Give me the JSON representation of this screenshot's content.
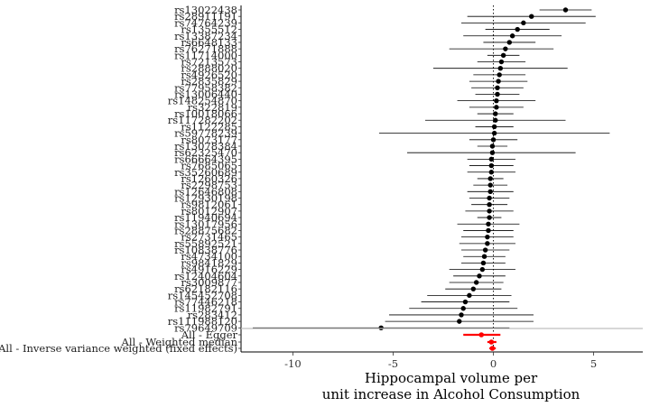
{
  "chart_data": {
    "type": "scatter",
    "subtype": "forest-plot",
    "title": "",
    "xlabel_line1": "Hippocampal volume per",
    "xlabel_line2": "unit increase in Alcohol Consumption",
    "ylabel": "",
    "xlim": [
      -12,
      7
    ],
    "xticks": [
      -10,
      -5,
      0,
      5
    ],
    "xtick_labels": [
      "-10",
      "-5",
      "0",
      "5"
    ],
    "reference_line": 0,
    "grid": false,
    "colors": {
      "snp": "#000000",
      "summary": "#ff0000",
      "separator": "#bfbfbf"
    },
    "snps": [
      {
        "label": "rs13022438",
        "estimate": 3.6,
        "lower": 2.3,
        "upper": 4.9
      },
      {
        "label": "rs28911191",
        "estimate": 1.9,
        "lower": -1.3,
        "upper": 5.1
      },
      {
        "label": "rs74764239",
        "estimate": 1.5,
        "lower": -1.6,
        "upper": 4.6
      },
      {
        "label": "rs1355512",
        "estimate": 1.2,
        "lower": -0.4,
        "upper": 2.8
      },
      {
        "label": "rs13387234",
        "estimate": 0.95,
        "lower": -1.5,
        "upper": 3.4
      },
      {
        "label": "rs6648133",
        "estimate": 0.8,
        "lower": -0.5,
        "upper": 2.1
      },
      {
        "label": "rs76271888",
        "estimate": 0.6,
        "lower": -2.2,
        "upper": 3.0
      },
      {
        "label": "rs11714000",
        "estimate": 0.5,
        "lower": -0.3,
        "upper": 1.3
      },
      {
        "label": "rs7213573",
        "estimate": 0.4,
        "lower": -0.8,
        "upper": 1.6
      },
      {
        "label": "rs2888020",
        "estimate": 0.35,
        "lower": -3.0,
        "upper": 3.7
      },
      {
        "label": "rs4926520",
        "estimate": 0.3,
        "lower": -1.0,
        "upper": 1.6
      },
      {
        "label": "rs2835829",
        "estimate": 0.25,
        "lower": -1.2,
        "upper": 1.7
      },
      {
        "label": "rs77958382",
        "estimate": 0.2,
        "lower": -1.1,
        "upper": 1.5
      },
      {
        "label": "rs13006440",
        "estimate": 0.2,
        "lower": -0.9,
        "upper": 1.3
      },
      {
        "label": "rs148254870",
        "estimate": 0.15,
        "lower": -1.8,
        "upper": 2.1
      },
      {
        "label": "rs322819",
        "estimate": 0.15,
        "lower": -1.2,
        "upper": 1.5
      },
      {
        "label": "rs10018066",
        "estimate": 0.1,
        "lower": -0.8,
        "upper": 1.0
      },
      {
        "label": "rs117282202",
        "estimate": 0.1,
        "lower": -3.4,
        "upper": 3.6
      },
      {
        "label": "rs1122285",
        "estimate": 0.05,
        "lower": -0.9,
        "upper": 1.0
      },
      {
        "label": "rs59778239",
        "estimate": 0.05,
        "lower": -5.7,
        "upper": 5.8
      },
      {
        "label": "rs8073177",
        "estimate": 0.0,
        "lower": -1.2,
        "upper": 1.2
      },
      {
        "label": "rs13078384",
        "estimate": -0.05,
        "lower": -0.8,
        "upper": 0.7
      },
      {
        "label": "rs62325470",
        "estimate": -0.05,
        "lower": -4.3,
        "upper": 4.1
      },
      {
        "label": "rs66664395",
        "estimate": -0.1,
        "lower": -1.3,
        "upper": 1.1
      },
      {
        "label": "rs7685065",
        "estimate": -0.1,
        "lower": -1.2,
        "upper": 1.0
      },
      {
        "label": "rs35260689",
        "estimate": -0.1,
        "lower": -1.3,
        "upper": 1.1
      },
      {
        "label": "rs1260326",
        "estimate": -0.15,
        "lower": -0.8,
        "upper": 0.5
      },
      {
        "label": "rs2298753",
        "estimate": -0.15,
        "lower": -1.0,
        "upper": 0.7
      },
      {
        "label": "rs12646808",
        "estimate": -0.15,
        "lower": -1.3,
        "upper": 1.0
      },
      {
        "label": "rs12930198",
        "estimate": -0.2,
        "lower": -1.2,
        "upper": 0.8
      },
      {
        "label": "rs9812061",
        "estimate": -0.2,
        "lower": -1.1,
        "upper": 0.7
      },
      {
        "label": "rs8012907",
        "estimate": -0.2,
        "lower": -1.4,
        "upper": 1.0
      },
      {
        "label": "rs11940694",
        "estimate": -0.2,
        "lower": -0.8,
        "upper": 0.4
      },
      {
        "label": "rs13017956",
        "estimate": -0.25,
        "lower": -1.8,
        "upper": 1.3
      },
      {
        "label": "rs28875682",
        "estimate": -0.25,
        "lower": -1.5,
        "upper": 1.0
      },
      {
        "label": "rs2731465",
        "estimate": -0.3,
        "lower": -1.6,
        "upper": 1.0
      },
      {
        "label": "rs55892521",
        "estimate": -0.3,
        "lower": -1.7,
        "upper": 1.1
      },
      {
        "label": "rs10838776",
        "estimate": -0.4,
        "lower": -1.6,
        "upper": 0.8
      },
      {
        "label": "rs4734100",
        "estimate": -0.45,
        "lower": -1.5,
        "upper": 0.6
      },
      {
        "label": "rs9841829",
        "estimate": -0.5,
        "lower": -1.6,
        "upper": 0.6
      },
      {
        "label": "rs4916229",
        "estimate": -0.55,
        "lower": -2.2,
        "upper": 1.1
      },
      {
        "label": "rs12404604",
        "estimate": -0.7,
        "lower": -2.0,
        "upper": 0.6
      },
      {
        "label": "rs3009877",
        "estimate": -0.85,
        "lower": -2.2,
        "upper": 0.5
      },
      {
        "label": "rs62182116",
        "estimate": -1.0,
        "lower": -2.4,
        "upper": 0.4
      },
      {
        "label": "rs145452708",
        "estimate": -1.2,
        "lower": -3.3,
        "upper": 0.9
      },
      {
        "label": "rs77446218",
        "estimate": -1.4,
        "lower": -3.6,
        "upper": 0.8
      },
      {
        "label": "rs11982791",
        "estimate": -1.5,
        "lower": -4.2,
        "upper": 1.2
      },
      {
        "label": "rs283412",
        "estimate": -1.6,
        "lower": -5.2,
        "upper": 2.0
      },
      {
        "label": "rs111988120",
        "estimate": -1.7,
        "lower": -5.4,
        "upper": 2.0
      },
      {
        "label": "rs79649709",
        "estimate": -5.6,
        "lower": -12.0,
        "upper": 0.8
      }
    ],
    "summary": [
      {
        "label": "All - Egger",
        "estimate": -0.6,
        "lower": -1.5,
        "upper": 0.35
      },
      {
        "label": "All - Weighted median",
        "estimate": -0.1,
        "lower": -0.3,
        "upper": 0.15
      },
      {
        "label": "All - Inverse variance weighted (fixed effects)",
        "estimate": -0.05,
        "lower": -0.2,
        "upper": 0.12
      }
    ]
  }
}
